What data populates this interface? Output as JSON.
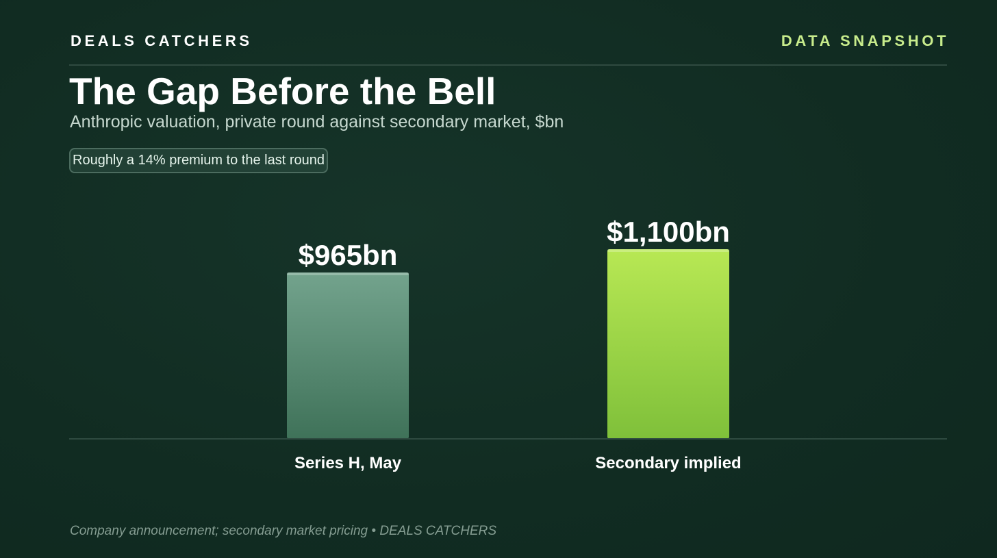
{
  "header": {
    "brand": "DEALS CATCHERS",
    "tag": "DATA SNAPSHOT"
  },
  "title": "The Gap Before the Bell",
  "subtitle": "Anthropic valuation, private round against secondary market, $bn",
  "callout": "Roughly a 14% premium to the last round",
  "source": "Company announcement; secondary market pricing • DEALS CATCHERS",
  "colors": {
    "background": "#123026",
    "bar_series_h_top": "#73a38d",
    "bar_series_h_bottom": "#3f7259",
    "bar_secondary_top": "#b8e854",
    "bar_secondary_bottom": "#7fc03a",
    "accent": "#c8ec8c"
  },
  "chart_data": {
    "type": "bar",
    "title": "The Gap Before the Bell",
    "subtitle": "Anthropic valuation, private round against secondary market, $bn",
    "categories": [
      "Series H, May",
      "Secondary implied"
    ],
    "values": [
      965,
      1100
    ],
    "data_labels": [
      "$965bn",
      "$1,100bn"
    ],
    "xlabel": "",
    "ylabel": "",
    "ylim": [
      0,
      1100
    ],
    "grid": false,
    "legend": "none"
  }
}
